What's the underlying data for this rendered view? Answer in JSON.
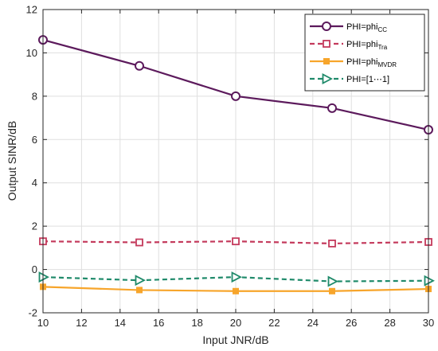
{
  "chart_data": {
    "type": "line",
    "xlabel": "Input JNR/dB",
    "ylabel": "Output SINR/dB",
    "xlim": [
      10,
      30
    ],
    "ylim": [
      -2,
      12
    ],
    "xticks": [
      10,
      12,
      14,
      16,
      18,
      20,
      22,
      24,
      26,
      28,
      30
    ],
    "yticks": [
      -2,
      0,
      2,
      4,
      6,
      8,
      10,
      12
    ],
    "grid": true,
    "legend_position": "top-right",
    "x": [
      10,
      15,
      20,
      25,
      30
    ],
    "series": [
      {
        "name": "PHI=phi",
        "name_sub": "CC",
        "color": "#5c1a5c",
        "dash": "solid",
        "marker": "circle",
        "values": [
          10.6,
          9.4,
          8.0,
          7.45,
          6.45
        ]
      },
      {
        "name": "PHI=phi",
        "name_sub": "Tra",
        "color": "#c43a5c",
        "dash": "dashed",
        "marker": "square",
        "values": [
          1.3,
          1.25,
          1.3,
          1.2,
          1.27
        ]
      },
      {
        "name": "PHI=phi",
        "name_sub": "MVDR",
        "color": "#f7a52b",
        "dash": "solid",
        "marker": "filled-square",
        "values": [
          -0.8,
          -0.95,
          -1.0,
          -1.0,
          -0.9
        ]
      },
      {
        "name": "PHI=[1⋯1]",
        "name_sub": "",
        "color": "#1f8a6a",
        "dash": "dashed",
        "marker": "triangle-right",
        "values": [
          -0.35,
          -0.5,
          -0.35,
          -0.55,
          -0.52
        ]
      }
    ]
  }
}
